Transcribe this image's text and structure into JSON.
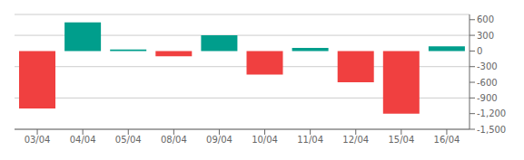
{
  "chart_data": {
    "type": "bar",
    "categories": [
      "03/04",
      "04/04",
      "05/04",
      "08/04",
      "09/04",
      "10/04",
      "11/04",
      "12/04",
      "15/04",
      "16/04"
    ],
    "values": [
      -1100,
      550,
      30,
      -100,
      300,
      -450,
      60,
      -600,
      -1200,
      90
    ],
    "colors": [
      "#f04040",
      "#009e8c",
      "#009e8c",
      "#f04040",
      "#009e8c",
      "#f04040",
      "#009e8c",
      "#f04040",
      "#f04040",
      "#009e8c"
    ],
    "ylim": [
      -1500,
      700
    ],
    "yticks": [
      600,
      300,
      0,
      -300,
      -600,
      -900,
      {
        "value": -1200,
        "label": "-1,200"
      },
      {
        "value": -1500,
        "label": "-1,500"
      }
    ],
    "grid": true
  }
}
